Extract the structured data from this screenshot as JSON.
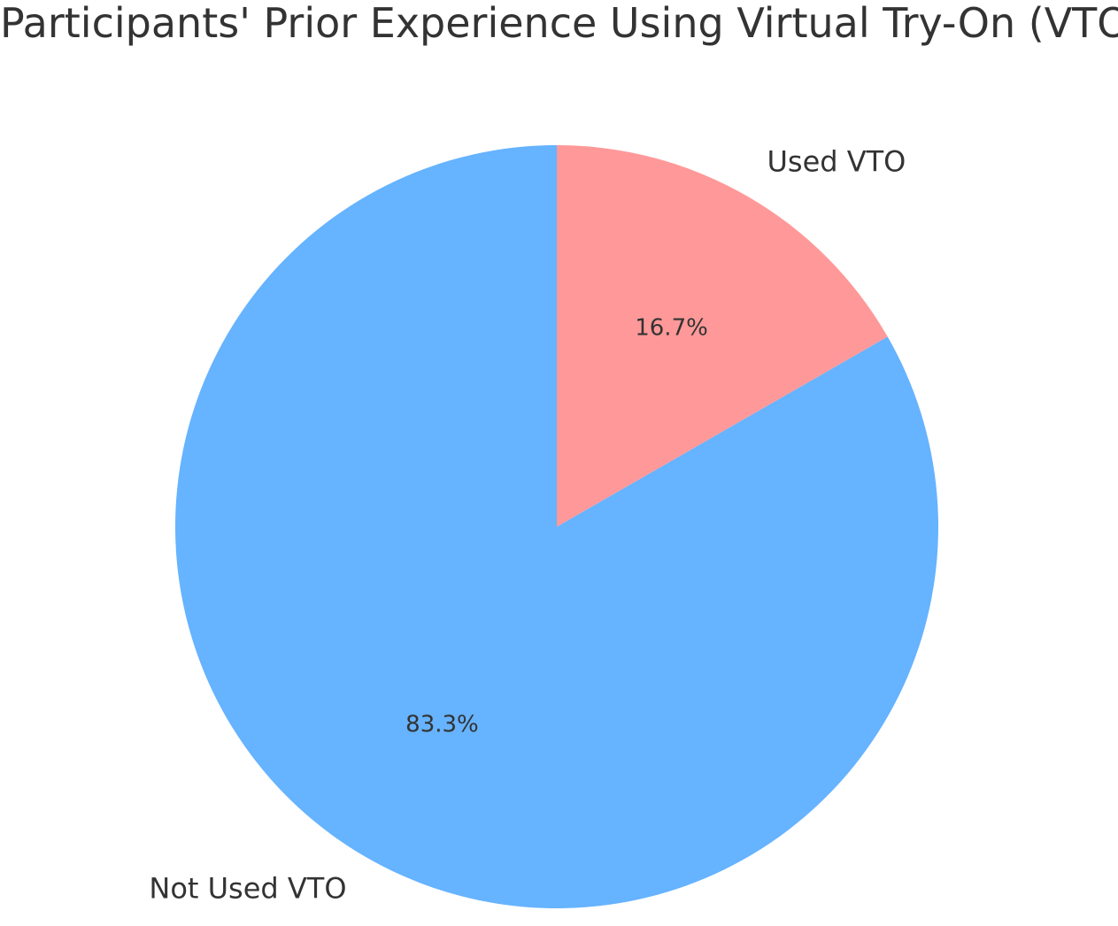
{
  "chart_data": {
    "type": "pie",
    "title": "Participants' Prior Experience Using Virtual Try-On (VTO)",
    "start_angle_deg": 90,
    "direction": "counterclockwise",
    "slices": [
      {
        "label": "Not Used VTO",
        "value": 83.3,
        "pct_label": "83.3%",
        "color": "#66b3ff"
      },
      {
        "label": "Used VTO",
        "value": 16.7,
        "pct_label": "16.7%",
        "color": "#ff9999"
      }
    ]
  }
}
